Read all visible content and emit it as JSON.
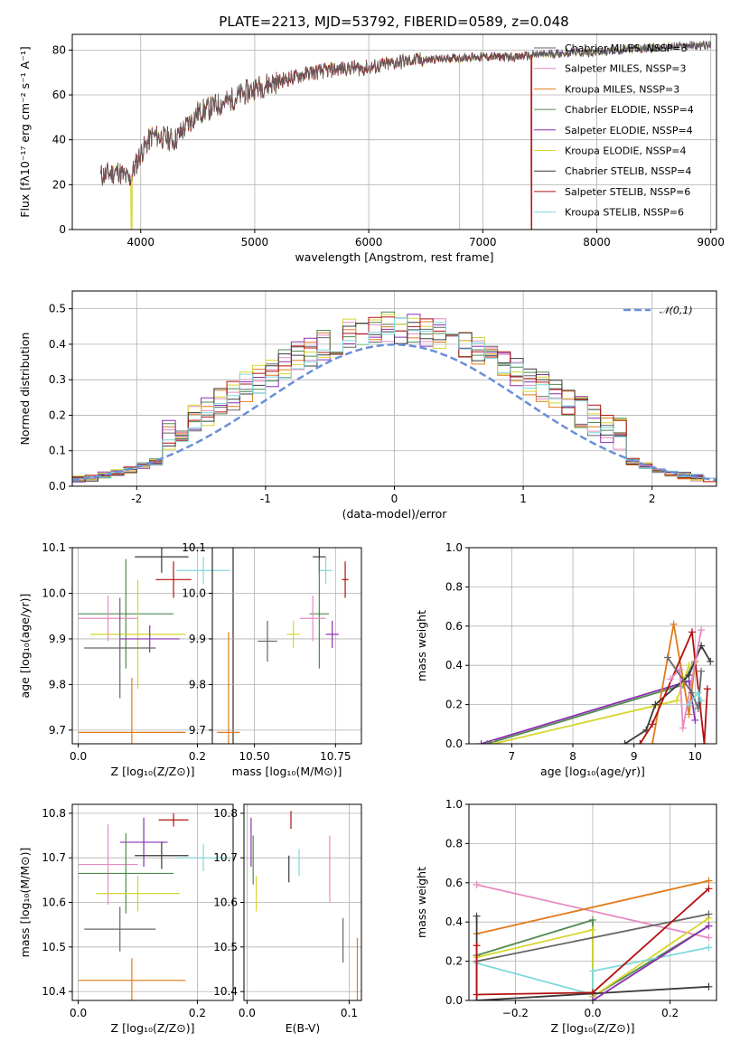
{
  "colors": [
    "#666666",
    "#e78ac3",
    "#e07b1a",
    "#4f8a4f",
    "#8b2fb0",
    "#d6d62e",
    "#3a3a3a",
    "#b21111",
    "#7fd8dc"
  ],
  "chart_data": [
    {
      "type": "line",
      "title": "PLATE=2213, MJD=53792, FIBERID=0589, z=0.048",
      "xlabel": "wavelength [Angstrom, rest frame]",
      "ylabel": "Flux [fλ10⁻¹⁷ erg cm⁻² s⁻¹ A⁻¹]",
      "xlim": [
        3400,
        9050
      ],
      "ylim": [
        0,
        87
      ],
      "xticks": [
        4000,
        5000,
        6000,
        7000,
        8000,
        9000
      ],
      "yticks": [
        0,
        20,
        40,
        60,
        80
      ],
      "legend_position": "right",
      "series": [
        {
          "name": "Chabrier MILES, NSSP=3"
        },
        {
          "name": "Salpeter MILES, NSSP=3"
        },
        {
          "name": "Kroupa MILES, NSSP=3"
        },
        {
          "name": "Chabrier ELODIE, NSSP=4"
        },
        {
          "name": "Salpeter ELODIE, NSSP=4"
        },
        {
          "name": "Kroupa ELODIE, NSSP=4"
        },
        {
          "name": "Chabrier STELIB, NSSP=4"
        },
        {
          "name": "Salpeter STELIB, NSSP=6"
        },
        {
          "name": "Kroupa STELIB, NSSP=6"
        }
      ],
      "continuum": {
        "x": [
          3650,
          3800,
          3900,
          4000,
          4100,
          4300,
          4500,
          4800,
          5000,
          5200,
          5500,
          5800,
          6000,
          6300,
          6600,
          7000,
          7300,
          7500,
          7800,
          8000,
          8200,
          8500,
          8800,
          9000
        ],
        "y": [
          24,
          26,
          22,
          34,
          42,
          40,
          52,
          58,
          63,
          66,
          70,
          72,
          72,
          75,
          76,
          77,
          77,
          78,
          79,
          79,
          80,
          81,
          82,
          82
        ]
      },
      "dropouts": [
        {
          "x": 3920,
          "series": 5
        },
        {
          "x": 6795,
          "series": 5
        },
        {
          "x": 7430,
          "series": 7
        }
      ]
    },
    {
      "type": "histogram",
      "xlabel": "(data-model)/error",
      "ylabel": "Normed distribution",
      "xlim": [
        -2.5,
        2.5
      ],
      "ylim": [
        0,
        0.55
      ],
      "xticks": [
        -2,
        -1,
        0,
        1,
        2
      ],
      "yticks": [
        0.0,
        0.1,
        0.2,
        0.3,
        0.4,
        0.5
      ],
      "reference_curve": {
        "name": "𝒩(0,1)",
        "mean": 0,
        "sigma": 1,
        "color": "#6a8fd8"
      },
      "bin_width": 0.1
    },
    {
      "type": "scatter",
      "xlabel": "Z [log₁₀(Z/Z⊙)]",
      "ylabel": "age  [log₁₀(age/yr)]",
      "xlim": [
        -0.01,
        0.26
      ],
      "ylim": [
        9.67,
        10.1
      ],
      "xticks": [
        0.0,
        0.2
      ],
      "yticks": [
        9.7,
        9.8,
        9.9,
        10.0,
        10.1
      ],
      "points": [
        {
          "x": 0.14,
          "y": 10.08,
          "xerr": 0.045,
          "yerr": 0.035,
          "series": 6
        },
        {
          "x": 0.16,
          "y": 10.03,
          "xerr": 0.03,
          "yerr": 0.04,
          "series": 7
        },
        {
          "x": 0.21,
          "y": 10.05,
          "xerr": 0.045,
          "yerr": 0.03,
          "series": 8
        },
        {
          "x": 0.08,
          "y": 9.955,
          "xerr": 0.08,
          "yerr": 0.12,
          "series": 3
        },
        {
          "x": 0.05,
          "y": 9.945,
          "xerr": 0.05,
          "yerr": 0.05,
          "series": 1
        },
        {
          "x": 0.1,
          "y": 9.91,
          "xerr": 0.08,
          "yerr": 0.12,
          "series": 5
        },
        {
          "x": 0.12,
          "y": 9.9,
          "xerr": 0.05,
          "yerr": 0.03,
          "series": 4
        },
        {
          "x": 0.07,
          "y": 9.88,
          "xerr": 0.06,
          "yerr": 0.11,
          "series": 0
        },
        {
          "x": 0.09,
          "y": 9.695,
          "xerr": 0.09,
          "yerr": 0.12,
          "series": 2
        }
      ]
    },
    {
      "type": "scatter",
      "xlabel": "mass [log₁₀(M/M⊙)]",
      "ylabel": "",
      "xlim": [
        10.37,
        10.83
      ],
      "ylim": [
        9.67,
        10.1
      ],
      "xticks": [
        10.5,
        10.75
      ],
      "xtick_labels": [
        "10.50",
        "10.75"
      ],
      "yticks": [
        9.7,
        9.8,
        9.9,
        10.0,
        10.1
      ],
      "points": [
        {
          "x": 10.7,
          "y": 10.08,
          "xerr": 0.02,
          "yerr": 0.035,
          "series": 6
        },
        {
          "x": 10.78,
          "y": 10.03,
          "xerr": 0.01,
          "yerr": 0.04,
          "series": 7
        },
        {
          "x": 10.72,
          "y": 10.05,
          "xerr": 0.02,
          "yerr": 0.03,
          "series": 8
        },
        {
          "x": 10.7,
          "y": 9.955,
          "xerr": 0.03,
          "yerr": 0.12,
          "series": 3
        },
        {
          "x": 10.68,
          "y": 9.945,
          "xerr": 0.04,
          "yerr": 0.05,
          "series": 1
        },
        {
          "x": 10.74,
          "y": 9.91,
          "xerr": 0.02,
          "yerr": 0.03,
          "series": 4
        },
        {
          "x": 10.62,
          "y": 9.91,
          "xerr": 0.02,
          "yerr": 0.03,
          "series": 5
        },
        {
          "x": 10.54,
          "y": 9.895,
          "xerr": 0.03,
          "yerr": 0.045,
          "series": 0
        },
        {
          "x": 10.42,
          "y": 9.695,
          "xerr": 0.035,
          "yerr": 0.22,
          "series": 2
        }
      ]
    },
    {
      "type": "line",
      "xlabel": "age  [log₁₀(age/yr)]",
      "ylabel": "mass weight",
      "xlim": [
        6.3,
        10.35
      ],
      "ylim": [
        0,
        1.0
      ],
      "xticks": [
        7,
        8,
        9,
        10
      ],
      "yticks": [
        0.0,
        0.2,
        0.4,
        0.6,
        0.8,
        1.0
      ],
      "series": [
        {
          "series": 4,
          "x": [
            6.5,
            9.9,
            10.0
          ],
          "y": [
            0.0,
            0.32,
            0.12
          ]
        },
        {
          "series": 3,
          "x": [
            6.6,
            9.8,
            9.95
          ],
          "y": [
            0.0,
            0.3,
            0.4
          ]
        },
        {
          "series": 5,
          "x": [
            6.7,
            9.7,
            9.9
          ],
          "y": [
            0.0,
            0.22,
            0.4
          ]
        },
        {
          "series": 2,
          "x": [
            9.3,
            9.65,
            9.9,
            10.0
          ],
          "y": [
            0.0,
            0.61,
            0.15,
            0.42
          ]
        },
        {
          "series": 6,
          "x": [
            8.85,
            9.2,
            9.35,
            9.9,
            10.1,
            10.25
          ],
          "y": [
            0.0,
            0.07,
            0.2,
            0.35,
            0.5,
            0.42
          ]
        },
        {
          "series": 7,
          "x": [
            9.1,
            9.3,
            9.95,
            10.15,
            10.2
          ],
          "y": [
            0.0,
            0.1,
            0.57,
            0.0,
            0.28
          ]
        },
        {
          "series": 1,
          "x": [
            9.6,
            9.75,
            9.8,
            10.1
          ],
          "y": [
            0.33,
            0.38,
            0.08,
            0.58
          ]
        },
        {
          "series": 0,
          "x": [
            9.55,
            9.95,
            10.05,
            10.1
          ],
          "y": [
            0.44,
            0.26,
            0.18,
            0.37
          ]
        },
        {
          "series": 8,
          "x": [
            9.9,
            10.05,
            10.1
          ],
          "y": [
            0.2,
            0.26,
            0.22
          ]
        }
      ]
    },
    {
      "type": "scatter",
      "xlabel": "Z [log₁₀(Z/Z⊙)]",
      "ylabel": "mass [log₁₀(M/M⊙)]",
      "xlim": [
        -0.01,
        0.26
      ],
      "ylim": [
        10.38,
        10.82
      ],
      "xticks": [
        0.0,
        0.2
      ],
      "yticks": [
        10.4,
        10.5,
        10.6,
        10.7,
        10.8
      ],
      "points": [
        {
          "x": 0.16,
          "y": 10.785,
          "xerr": 0.025,
          "yerr": 0.015,
          "series": 7
        },
        {
          "x": 0.11,
          "y": 10.735,
          "xerr": 0.04,
          "yerr": 0.055,
          "series": 4
        },
        {
          "x": 0.14,
          "y": 10.705,
          "xerr": 0.045,
          "yerr": 0.03,
          "series": 6
        },
        {
          "x": 0.21,
          "y": 10.7,
          "xerr": 0.045,
          "yerr": 0.03,
          "series": 8
        },
        {
          "x": 0.05,
          "y": 10.685,
          "xerr": 0.05,
          "yerr": 0.09,
          "series": 1
        },
        {
          "x": 0.08,
          "y": 10.665,
          "xerr": 0.08,
          "yerr": 0.09,
          "series": 3
        },
        {
          "x": 0.1,
          "y": 10.62,
          "xerr": 0.07,
          "yerr": 0.04,
          "series": 5
        },
        {
          "x": 0.07,
          "y": 10.54,
          "xerr": 0.06,
          "yerr": 0.05,
          "series": 0
        },
        {
          "x": 0.09,
          "y": 10.425,
          "xerr": 0.09,
          "yerr": 0.05,
          "series": 2
        }
      ]
    },
    {
      "type": "scatter",
      "xlabel": "E(B-V)",
      "ylabel": "",
      "xlim": [
        -0.003,
        0.112
      ],
      "ylim": [
        10.38,
        10.82
      ],
      "xticks": [
        0.0,
        0.1
      ],
      "yticks": [
        10.4,
        10.5,
        10.6,
        10.7,
        10.8
      ],
      "points": [
        {
          "x": 0.004,
          "y": 10.735,
          "yerr": 0.055,
          "series": 4
        },
        {
          "x": 0.006,
          "y": 10.695,
          "yerr": 0.055,
          "series": 3
        },
        {
          "x": 0.009,
          "y": 10.62,
          "yerr": 0.04,
          "series": 5
        },
        {
          "x": 0.043,
          "y": 10.785,
          "yerr": 0.02,
          "series": 7
        },
        {
          "x": 0.041,
          "y": 10.675,
          "yerr": 0.03,
          "series": 6
        },
        {
          "x": 0.051,
          "y": 10.69,
          "yerr": 0.03,
          "series": 8
        },
        {
          "x": 0.081,
          "y": 10.675,
          "yerr": 0.075,
          "series": 1
        },
        {
          "x": 0.094,
          "y": 10.515,
          "yerr": 0.05,
          "series": 0
        },
        {
          "x": 0.108,
          "y": 10.45,
          "yerr": 0.07,
          "series": 2
        }
      ]
    },
    {
      "type": "line",
      "xlabel": "Z [log₁₀(Z/Z⊙)]",
      "ylabel": "mass weight",
      "xlim": [
        -0.32,
        0.32
      ],
      "ylim": [
        0,
        1.0
      ],
      "xticks": [
        -0.2,
        0.0,
        0.2
      ],
      "xtick_labels": [
        "−0.2",
        "0.0",
        "0.2"
      ],
      "yticks": [
        0.0,
        0.2,
        0.4,
        0.6,
        0.8,
        1.0
      ],
      "series": [
        {
          "series": 1,
          "x": [
            -0.3,
            0.3
          ],
          "y": [
            0.59,
            0.32
          ]
        },
        {
          "series": 2,
          "x": [
            -0.3,
            0.3
          ],
          "y": [
            0.34,
            0.61
          ]
        },
        {
          "series": 3,
          "x": [
            -0.3,
            0.0,
            0.0,
            0.3
          ],
          "y": [
            0.23,
            0.41,
            0.02,
            0.38
          ]
        },
        {
          "series": 5,
          "x": [
            -0.3,
            0.0,
            0.0,
            0.3
          ],
          "y": [
            0.22,
            0.36,
            0.02,
            0.42
          ]
        },
        {
          "series": 0,
          "x": [
            -0.3,
            0.3
          ],
          "y": [
            0.2,
            0.44
          ]
        },
        {
          "series": 8,
          "x": [
            -0.3,
            0.0,
            0.0,
            0.3
          ],
          "y": [
            0.19,
            0.03,
            0.15,
            0.27
          ]
        },
        {
          "series": 6,
          "x": [
            -0.3,
            -0.3,
            0.3
          ],
          "y": [
            0.43,
            0.0,
            0.07
          ]
        },
        {
          "series": 7,
          "x": [
            -0.3,
            -0.3,
            0.0,
            0.3
          ],
          "y": [
            0.28,
            0.03,
            0.04,
            0.57
          ]
        },
        {
          "series": 4,
          "x": [
            0.0,
            0.3
          ],
          "y": [
            0.0,
            0.38
          ]
        }
      ]
    }
  ]
}
